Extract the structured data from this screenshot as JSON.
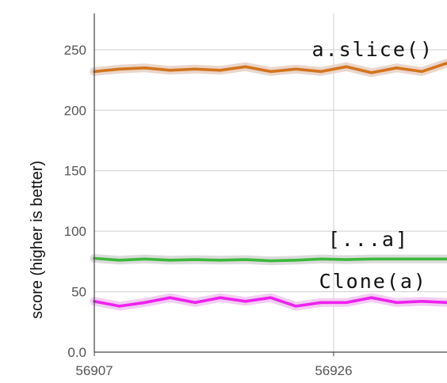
{
  "chart_data": {
    "type": "line",
    "ylabel": "score (higher is better)",
    "xlim": [
      56907,
      56935
    ],
    "ylim": [
      0,
      280
    ],
    "x_ticks": [
      56907,
      56926
    ],
    "x_tick_labels": [
      "56907",
      "56926"
    ],
    "y_ticks": [
      0,
      50,
      100,
      150,
      200,
      250
    ],
    "y_tick_labels": [
      "0.0",
      "50",
      "100",
      "150",
      "200",
      "250"
    ],
    "grid": true,
    "legend": "none",
    "x": [
      56907,
      56909,
      56911,
      56913,
      56915,
      56917,
      56919,
      56921,
      56923,
      56925,
      56927,
      56929,
      56931,
      56933,
      56935
    ],
    "series": [
      {
        "name": "a.slice()",
        "color": "#d2741e",
        "band_color": "#e8cfc3",
        "values": [
          232,
          234,
          235,
          233,
          234,
          233,
          236,
          232,
          234,
          232,
          236,
          231,
          235,
          232,
          239
        ]
      },
      {
        "name": "[...a]",
        "color": "#3db83d",
        "band_color": "#d6d6d6",
        "values": [
          77.5,
          76,
          77,
          76,
          76.5,
          76,
          76.5,
          75.5,
          76,
          77,
          76.5,
          77,
          77,
          77,
          77
        ]
      },
      {
        "name": "Clone(a)",
        "color": "#ee22ee",
        "band_color": "#f0c6f0",
        "values": [
          42,
          38,
          41,
          45,
          41,
          45,
          42,
          45,
          38,
          41,
          41,
          45,
          41,
          42,
          41
        ]
      }
    ]
  }
}
